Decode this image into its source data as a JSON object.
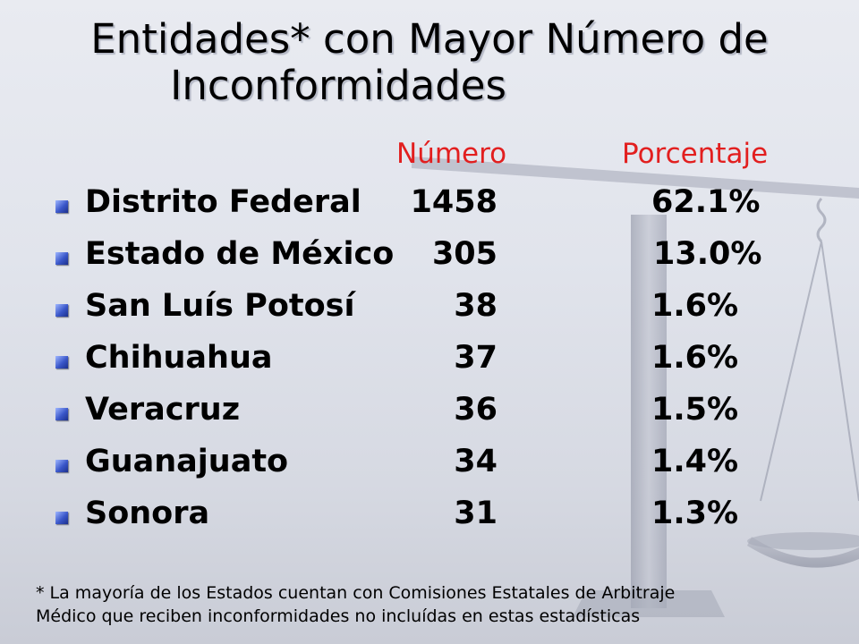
{
  "slide": {
    "title_line1": "Entidades* con Mayor Número de",
    "title_line2": "Inconformidades",
    "headers": {
      "number": "Número",
      "percentage": "Porcentaje"
    },
    "rows": [
      {
        "entity": "Distrito Federal",
        "number": "1458",
        "percentage": "62.1%"
      },
      {
        "entity": "Estado de México",
        "number": "305",
        "percentage": "13.0%"
      },
      {
        "entity": "San Luís Potosí",
        "number": "38",
        "percentage": "1.6%"
      },
      {
        "entity": "Chihuahua",
        "number": "37",
        "percentage": "1.6%"
      },
      {
        "entity": "Veracruz",
        "number": "36",
        "percentage": "1.5%"
      },
      {
        "entity": "Guanajuato",
        "number": "34",
        "percentage": "1.4%"
      },
      {
        "entity": "Sonora",
        "number": "31",
        "percentage": "1.3%"
      }
    ],
    "footnote_line1": "* La mayoría de los Estados cuentan con Comisiones Estatales de Arbitraje",
    "footnote_line2": "Médico que reciben inconformidades no incluídas en estas estadísticas"
  },
  "colors": {
    "header_text": "#e21f1f",
    "bullet": "#3956c9",
    "background": "#e1e4ec"
  }
}
